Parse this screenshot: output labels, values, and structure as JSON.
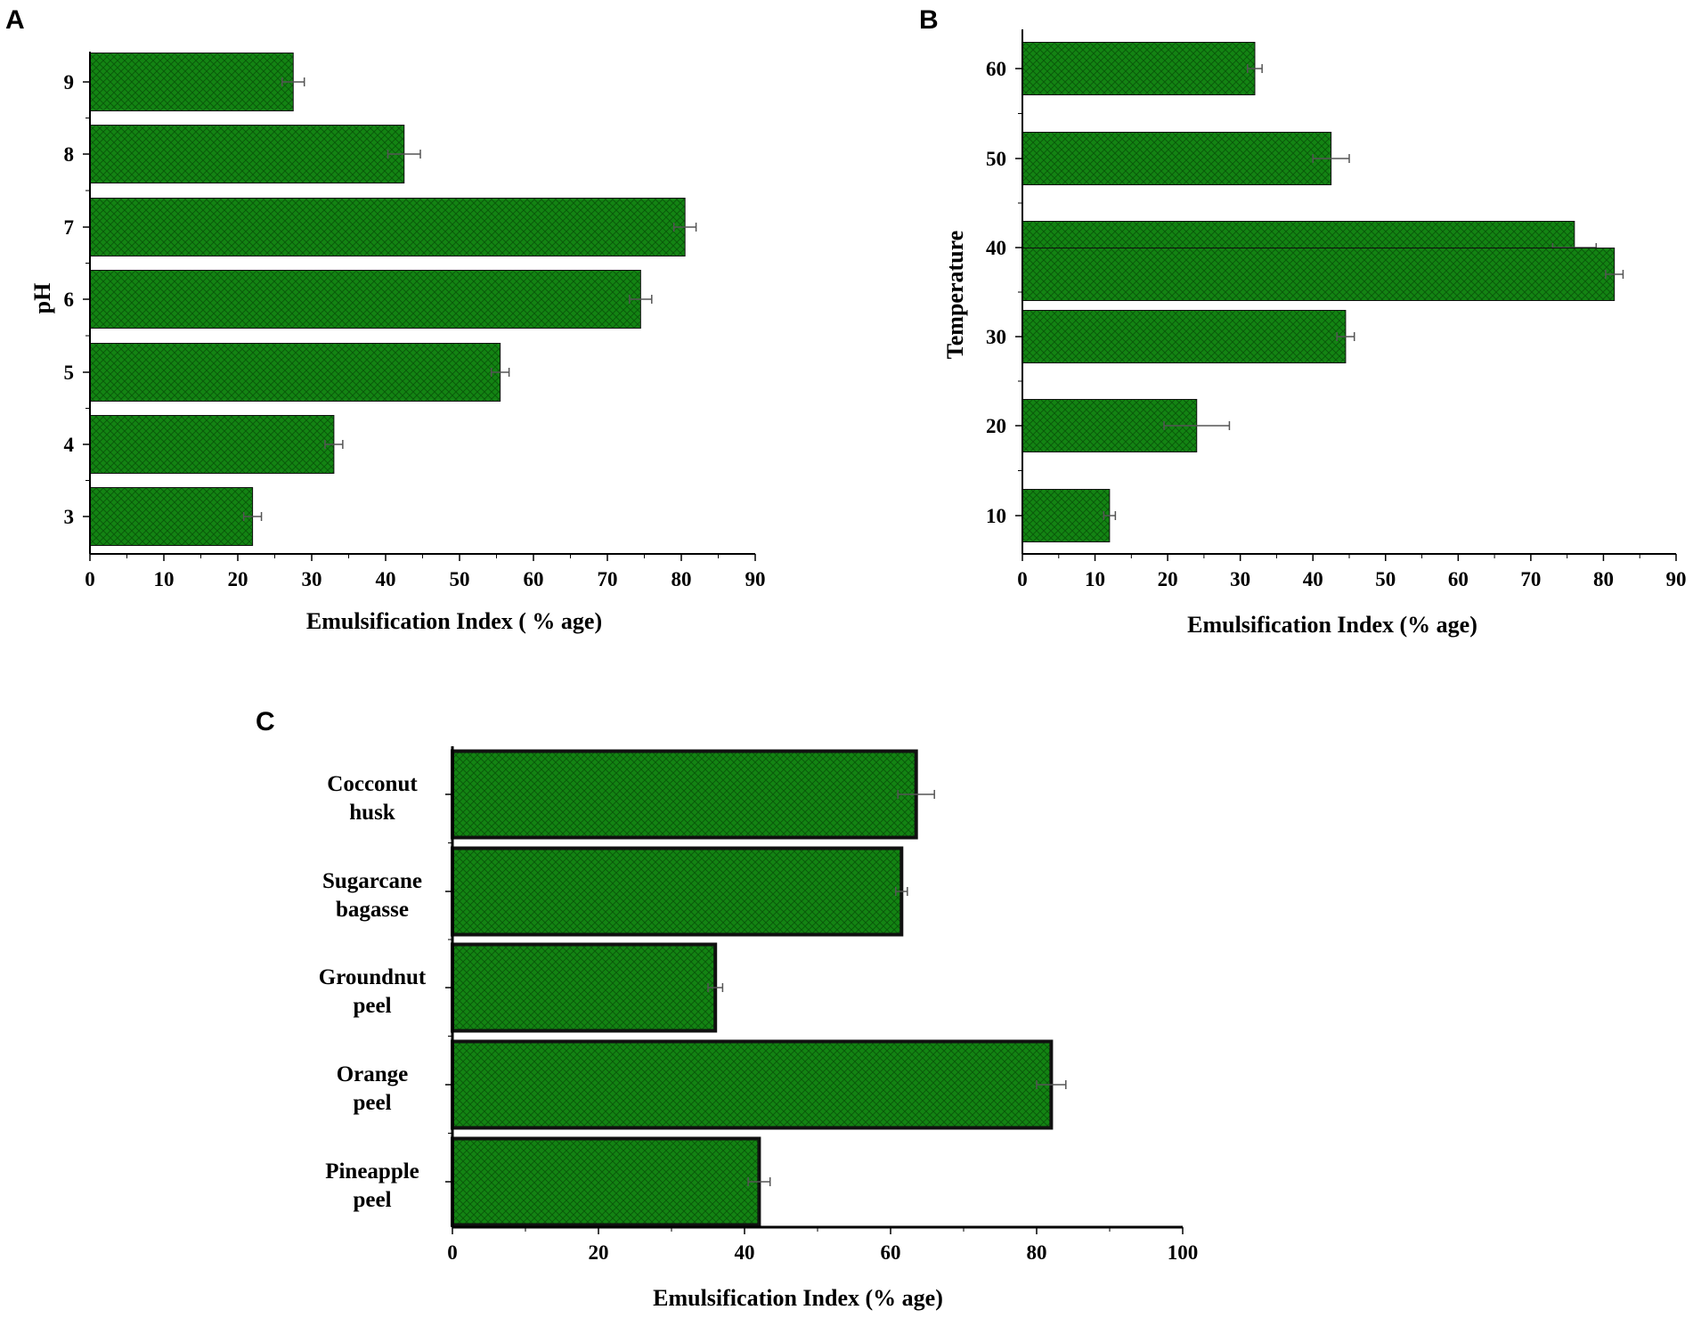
{
  "colors": {
    "bar_fill": "#138413",
    "bar_hatch": "#0a5a0a",
    "bar_stroke": "#111111",
    "axis": "#000000",
    "error_bar": "#555555"
  },
  "panels": [
    {
      "letter": "A"
    },
    {
      "letter": "B"
    },
    {
      "letter": "C"
    }
  ],
  "chart_data": [
    {
      "type": "bar",
      "orientation": "horizontal",
      "panel": "A",
      "categories": [
        "3",
        "4",
        "5",
        "6",
        "7",
        "8",
        "9"
      ],
      "values": [
        22,
        33,
        55.5,
        74.5,
        80.5,
        42.5,
        27.5
      ],
      "errors": [
        1.2,
        1.2,
        1.2,
        1.5,
        1.5,
        2.2,
        1.5
      ],
      "xlabel": "Emulsification Index ( % age)",
      "ylabel": "pH",
      "xlim": [
        0,
        90
      ],
      "xticks": [
        0,
        10,
        20,
        30,
        40,
        50,
        60,
        70,
        80,
        90
      ],
      "xtick_labels": [
        "0",
        "10",
        "20",
        "30",
        "40",
        "50",
        "60",
        "70",
        "80",
        "90"
      ]
    },
    {
      "type": "bar",
      "orientation": "horizontal",
      "panel": "B",
      "categories": [
        "10",
        "20",
        "30",
        "40",
        "50",
        "60"
      ],
      "values": [
        12,
        24,
        44.5,
        76,
        42.5,
        32
      ],
      "errors": [
        0.8,
        4.5,
        1.2,
        3,
        2.5,
        1
      ],
      "extra_bars": [
        {
          "category": "40",
          "value": 81.5,
          "error": 1.2
        }
      ],
      "xlabel": "Emulsification Index (% age)",
      "ylabel": "Temperature",
      "xlim": [
        0,
        90
      ],
      "xticks": [
        0,
        10,
        20,
        30,
        40,
        50,
        60,
        70,
        80,
        90
      ],
      "xtick_labels": [
        "0",
        "10",
        "20",
        "30",
        "40",
        "50",
        "60",
        "70",
        "80",
        "90"
      ]
    },
    {
      "type": "bar",
      "orientation": "horizontal",
      "panel": "C",
      "categories": [
        {
          "line1": "Pineapple",
          "line2": "peel"
        },
        {
          "line1": "Orange",
          "line2": "peel"
        },
        {
          "line1": "Groundnut",
          "line2": "peel"
        },
        {
          "line1": "Sugarcane",
          "line2": "bagasse"
        },
        {
          "line1": "Cocconut",
          "line2": "husk"
        }
      ],
      "values": [
        42,
        82,
        36,
        61.5,
        63.5
      ],
      "errors": [
        1.5,
        2,
        1,
        0.8,
        2.5
      ],
      "xlabel": "Emulsification Index (% age)",
      "ylabel": "",
      "xlim": [
        0,
        100
      ],
      "xticks": [
        0,
        20,
        40,
        60,
        80,
        100
      ],
      "xtick_labels": [
        "0",
        "20",
        "40",
        "60",
        "80",
        "100"
      ]
    }
  ]
}
